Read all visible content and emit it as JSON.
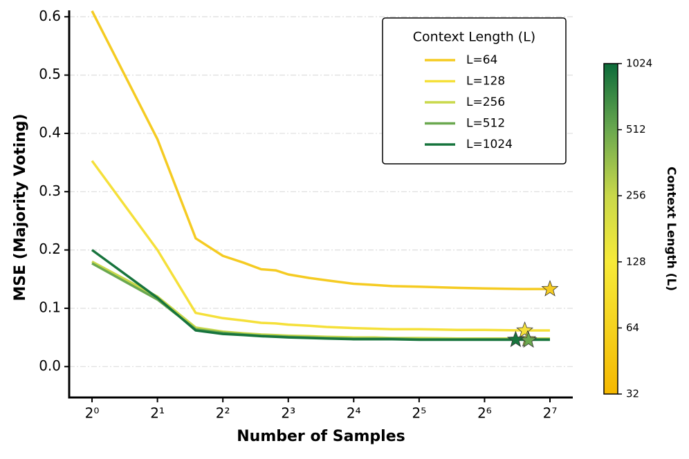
{
  "chart_data": {
    "type": "line",
    "xlabel": "Number of Samples",
    "ylabel": "MSE (Majority Voting)",
    "xscale": "log2",
    "x": [
      1,
      2,
      3,
      4,
      5,
      6,
      7,
      8,
      10,
      12,
      16,
      20,
      24,
      32,
      48,
      64,
      96,
      128
    ],
    "xlim": [
      0.785,
      163
    ],
    "xticks": [
      {
        "value": 1,
        "label": "2⁰"
      },
      {
        "value": 2,
        "label": "2¹"
      },
      {
        "value": 4,
        "label": "2²"
      },
      {
        "value": 8,
        "label": "2³"
      },
      {
        "value": 16,
        "label": "2⁴"
      },
      {
        "value": 32,
        "label": "2⁵"
      },
      {
        "value": 64,
        "label": "2⁶"
      },
      {
        "value": 128,
        "label": "2⁷"
      }
    ],
    "ylim": [
      -0.053,
      0.611
    ],
    "yticks": [
      {
        "value": 0,
        "label": "0.0"
      },
      0.1,
      0.2,
      0.3,
      0.4,
      0.5,
      0.6
    ],
    "grid": true,
    "legend_title": "Context Length (L)",
    "legend_position": "upper right",
    "series": [
      {
        "name": "L=64",
        "color": "#f5cb22",
        "values": [
          0.61,
          0.39,
          0.22,
          0.19,
          0.178,
          0.167,
          0.165,
          0.158,
          0.152,
          0.148,
          0.142,
          0.14,
          0.138,
          0.137,
          0.135,
          0.134,
          0.133,
          0.133
        ],
        "best": {
          "x": 128,
          "y": 0.133
        }
      },
      {
        "name": "L=128",
        "color": "#f5e03a",
        "values": [
          0.353,
          0.2,
          0.092,
          0.083,
          0.079,
          0.075,
          0.074,
          0.072,
          0.07,
          0.068,
          0.066,
          0.065,
          0.064,
          0.064,
          0.063,
          0.063,
          0.062,
          0.062
        ],
        "best": {
          "x": 98,
          "y": 0.062
        }
      },
      {
        "name": "L=256",
        "color": "#c9d84a",
        "values": [
          0.18,
          0.12,
          0.067,
          0.06,
          0.057,
          0.055,
          0.054,
          0.053,
          0.052,
          0.051,
          0.05,
          0.05,
          0.049,
          0.049,
          0.048,
          0.048,
          0.048,
          0.048
        ],
        "best": {
          "x": 101,
          "y": 0.047
        }
      },
      {
        "name": "L=512",
        "color": "#6aa84f",
        "values": [
          0.177,
          0.115,
          0.064,
          0.058,
          0.055,
          0.053,
          0.052,
          0.051,
          0.05,
          0.049,
          0.048,
          0.048,
          0.048,
          0.047,
          0.047,
          0.047,
          0.047,
          0.047
        ],
        "best": {
          "x": 102,
          "y": 0.045
        }
      },
      {
        "name": "L=1024",
        "color": "#17743d",
        "values": [
          0.2,
          0.118,
          0.062,
          0.056,
          0.054,
          0.052,
          0.051,
          0.05,
          0.049,
          0.048,
          0.047,
          0.047,
          0.047,
          0.046,
          0.046,
          0.046,
          0.046,
          0.046
        ],
        "best": {
          "x": 89,
          "y": 0.046
        }
      }
    ],
    "colorbar": {
      "label": "Context Length (L)",
      "lim": [
        32,
        1024
      ],
      "ticks": [
        32,
        64,
        128,
        256,
        512,
        1024
      ],
      "colors": [
        "#f5b800",
        "#f5d21e",
        "#f7ea38",
        "#c9d84a",
        "#6aa84f",
        "#0d6b3a"
      ]
    }
  }
}
